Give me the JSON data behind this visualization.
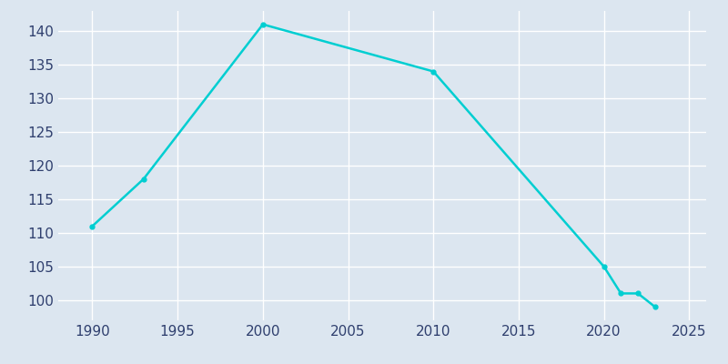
{
  "years": [
    1990,
    1993,
    2000,
    2010,
    2020,
    2021,
    2022,
    2023
  ],
  "population": [
    111,
    118,
    141,
    134,
    105,
    101,
    101,
    99
  ],
  "line_color": "#00CED1",
  "bg_color": "#dce6f0",
  "plot_bg_color": "#dce6f0",
  "text_color": "#2f3f6e",
  "grid_color": "#ffffff",
  "xlim": [
    1988,
    2026
  ],
  "ylim": [
    97,
    143
  ],
  "xticks": [
    1990,
    1995,
    2000,
    2005,
    2010,
    2015,
    2020,
    2025
  ],
  "yticks": [
    100,
    105,
    110,
    115,
    120,
    125,
    130,
    135,
    140
  ],
  "linewidth": 1.8,
  "markersize": 3.5
}
